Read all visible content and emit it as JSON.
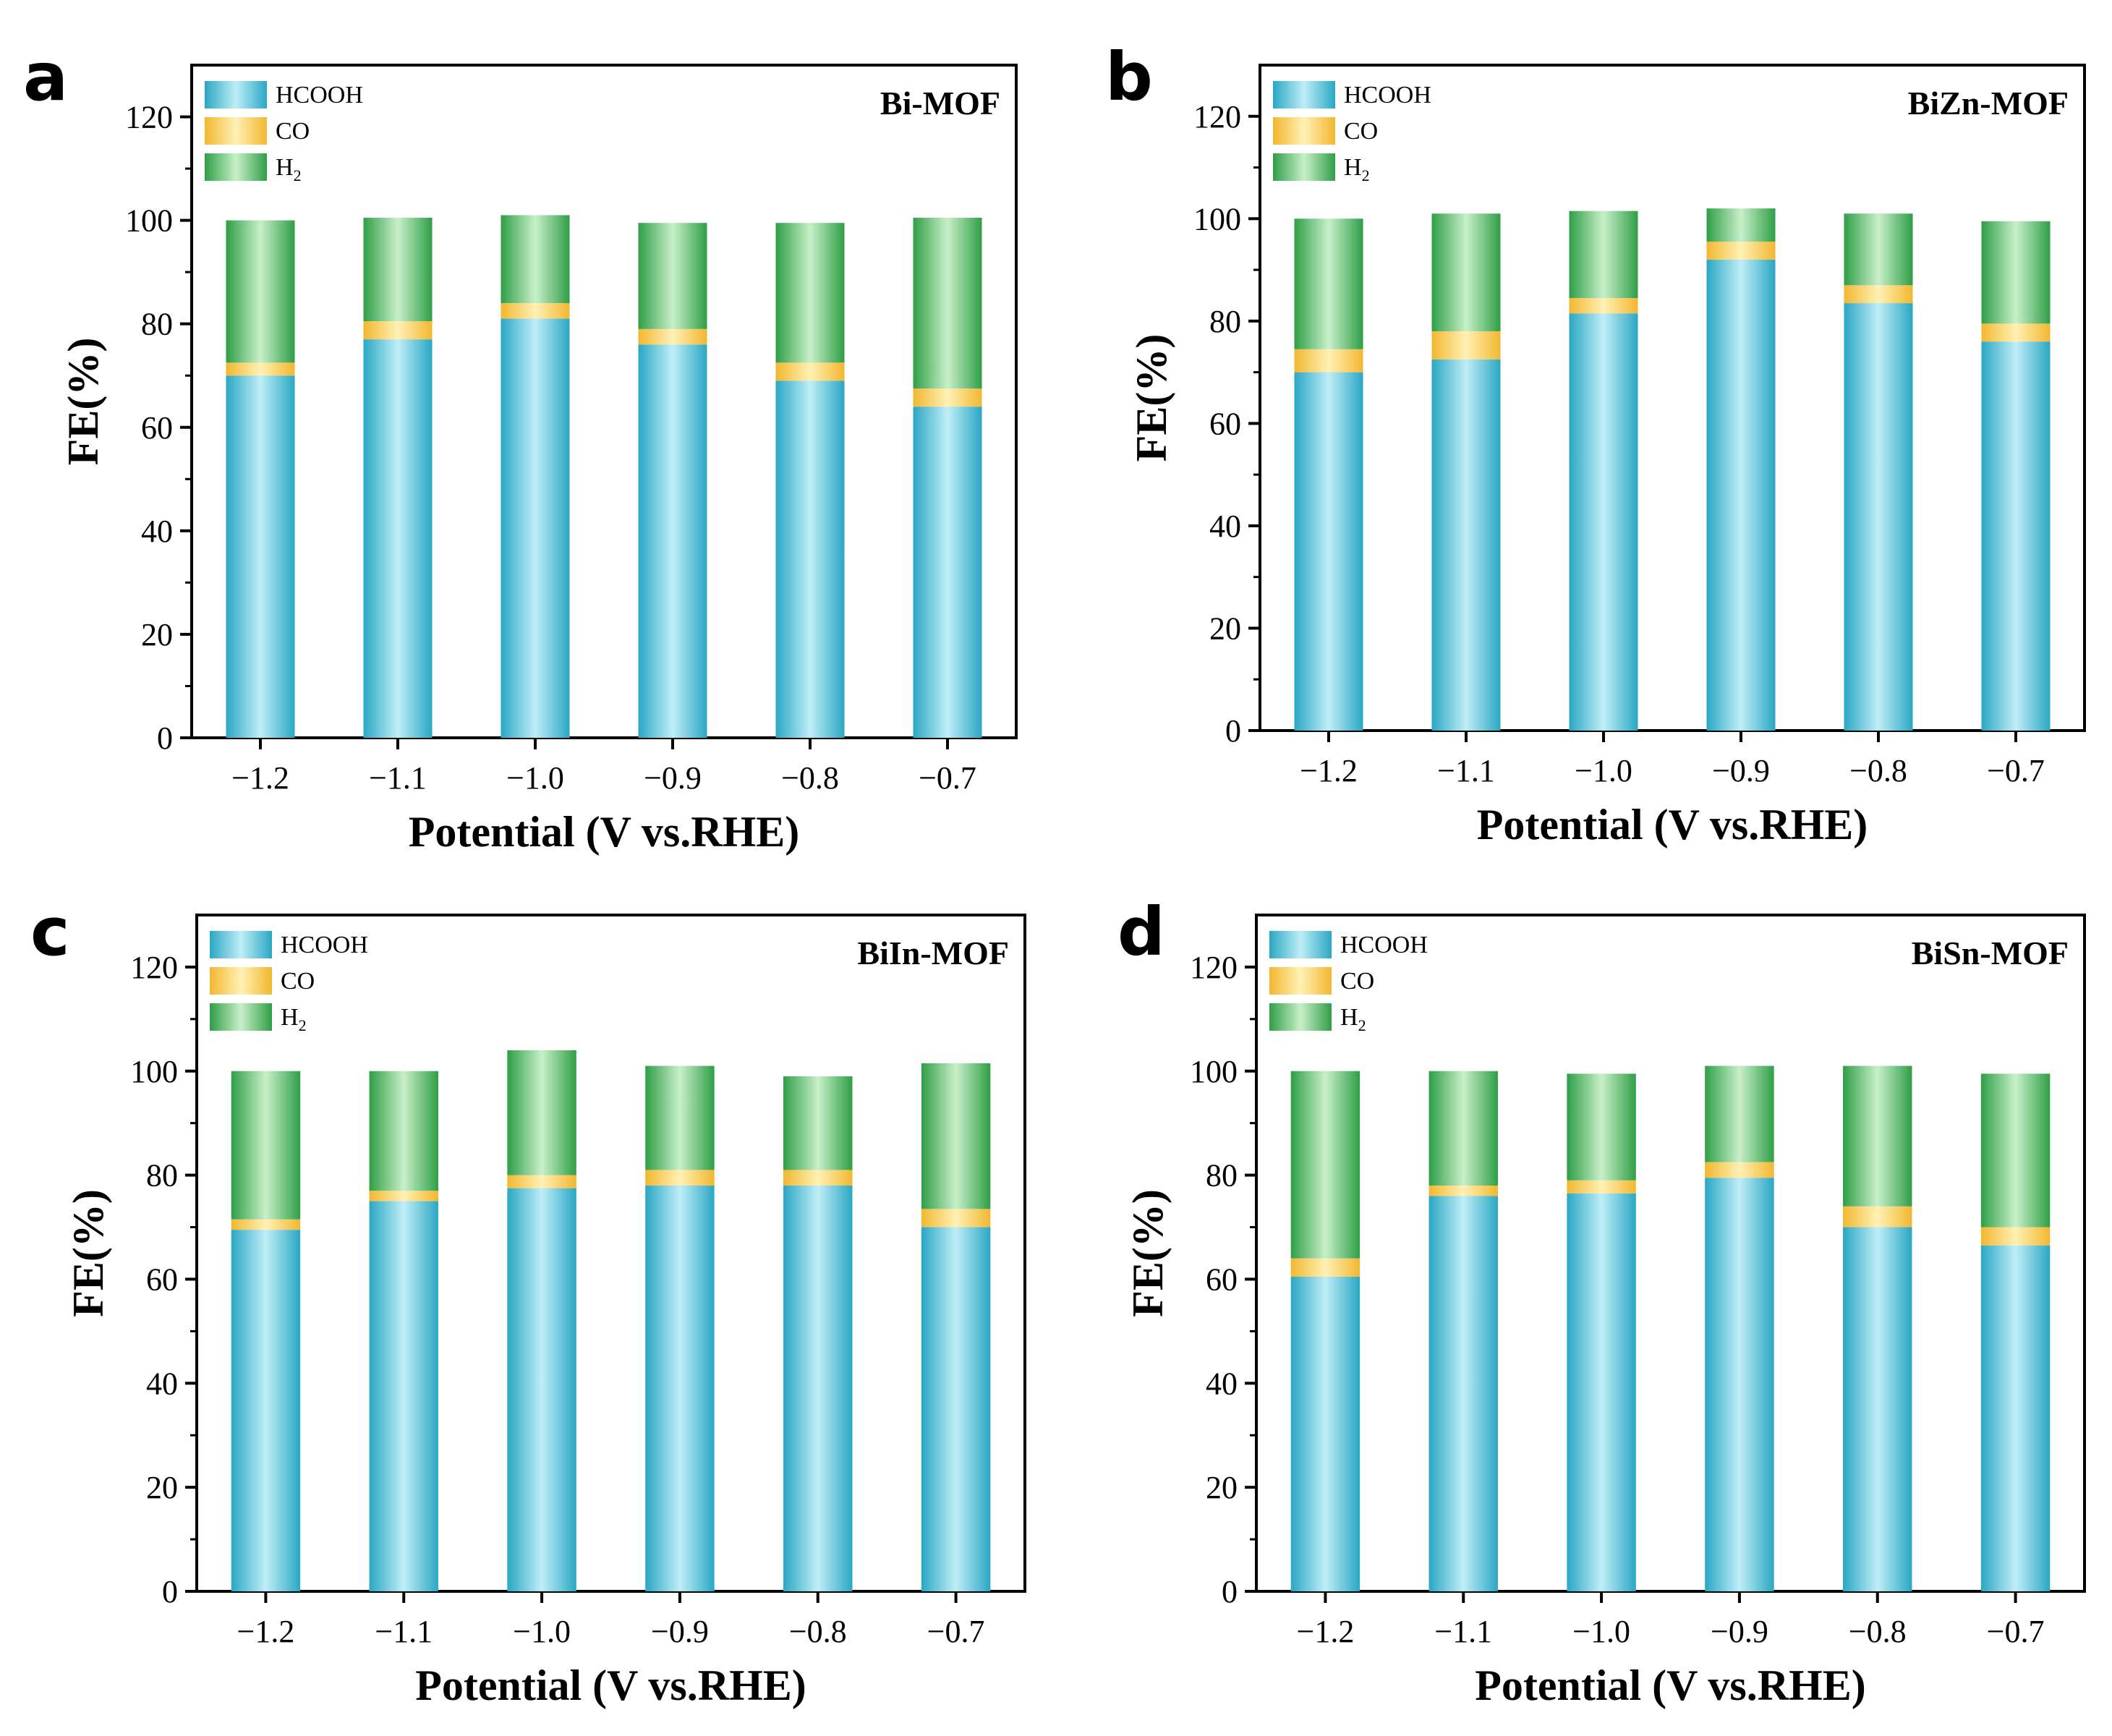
{
  "colors": {
    "hcooh": "#2aa7c4",
    "hcooh_light": "#bfeef7",
    "co": "#f2b72f",
    "co_light": "#fff1b5",
    "h2": "#2f9e47",
    "h2_light": "#c8f0c9"
  },
  "chart_data": [
    {
      "panel": "a",
      "type": "bar",
      "stacked": true,
      "title": "Bi-MOF",
      "xlabel": "Potential (V vs.RHE)",
      "ylabel": "FE(%)",
      "ylim": [
        0,
        130
      ],
      "yticks": [
        "0",
        "20",
        "40",
        "60",
        "80",
        "100",
        "120"
      ],
      "categories": [
        "−1.2",
        "−1.1",
        "−1.0",
        "−0.9",
        "−0.8",
        "−0.7"
      ],
      "series": [
        {
          "name": "HCOOH",
          "values": [
            70,
            77,
            81,
            76,
            69,
            64
          ]
        },
        {
          "name": "CO",
          "values": [
            2.5,
            3.5,
            3,
            3,
            3.5,
            3.5
          ]
        },
        {
          "name": "H2",
          "values": [
            27.5,
            20,
            17,
            20.5,
            27,
            33
          ]
        }
      ]
    },
    {
      "panel": "b",
      "type": "bar",
      "stacked": true,
      "title": "BiZn-MOF",
      "xlabel": "Potential (V vs.RHE)",
      "ylabel": "FE(%)",
      "ylim": [
        0,
        130
      ],
      "yticks": [
        "0",
        "20",
        "40",
        "60",
        "80",
        "100",
        "120"
      ],
      "categories": [
        "−1.2",
        "−1.1",
        "−1.0",
        "−0.9",
        "−0.8",
        "−0.7"
      ],
      "series": [
        {
          "name": "HCOOH",
          "values": [
            70,
            72.5,
            81.5,
            92,
            83.5,
            76
          ]
        },
        {
          "name": "CO",
          "values": [
            4.5,
            5.5,
            3,
            3.5,
            3.5,
            3.5
          ]
        },
        {
          "name": "H2",
          "values": [
            25.5,
            23,
            17,
            6.5,
            14,
            20
          ]
        }
      ]
    },
    {
      "panel": "c",
      "type": "bar",
      "stacked": true,
      "title": "BiIn-MOF",
      "xlabel": "Potential (V vs.RHE)",
      "ylabel": "FE(%)",
      "ylim": [
        0,
        130
      ],
      "yticks": [
        "0",
        "20",
        "40",
        "60",
        "80",
        "100",
        "120"
      ],
      "categories": [
        "−1.2",
        "−1.1",
        "−1.0",
        "−0.9",
        "−0.8",
        "−0.7"
      ],
      "series": [
        {
          "name": "HCOOH",
          "values": [
            69.5,
            75,
            77.5,
            78,
            78,
            70
          ]
        },
        {
          "name": "CO",
          "values": [
            2,
            2,
            2.5,
            3,
            3,
            3.5
          ]
        },
        {
          "name": "H2",
          "values": [
            28.5,
            23,
            24,
            20,
            18,
            28
          ]
        }
      ]
    },
    {
      "panel": "d",
      "type": "bar",
      "stacked": true,
      "title": "BiSn-MOF",
      "xlabel": "Potential (V vs.RHE)",
      "ylabel": "FE(%)",
      "ylim": [
        0,
        130
      ],
      "yticks": [
        "0",
        "20",
        "40",
        "60",
        "80",
        "100",
        "120"
      ],
      "categories": [
        "−1.2",
        "−1.1",
        "−1.0",
        "−0.9",
        "−0.8",
        "−0.7"
      ],
      "series": [
        {
          "name": "HCOOH",
          "values": [
            60.5,
            76,
            76.5,
            79.5,
            70,
            66.5
          ]
        },
        {
          "name": "CO",
          "values": [
            3.5,
            2,
            2.5,
            3,
            4,
            3.5
          ]
        },
        {
          "name": "H2",
          "values": [
            36,
            22,
            20.5,
            18.5,
            27,
            29.5
          ]
        }
      ]
    }
  ]
}
